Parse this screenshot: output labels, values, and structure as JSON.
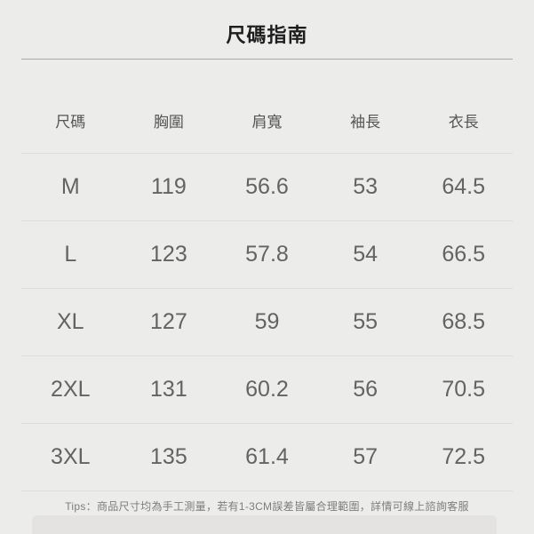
{
  "title": "尺碼指南",
  "table": {
    "headers": [
      "尺碼",
      "胸圍",
      "肩寬",
      "袖長",
      "衣長"
    ],
    "rows": [
      [
        "M",
        "119",
        "56.6",
        "53",
        "64.5"
      ],
      [
        "L",
        "123",
        "57.8",
        "54",
        "66.5"
      ],
      [
        "XL",
        "127",
        "59",
        "55",
        "68.5"
      ],
      [
        "2XL",
        "131",
        "60.2",
        "56",
        "70.5"
      ],
      [
        "3XL",
        "135",
        "61.4",
        "57",
        "72.5"
      ]
    ]
  },
  "tips": "Tips：商品尺寸均為手工測量，若有1-3CM誤差皆屬合理範圍，詳情可線上諮詢客服",
  "colors": {
    "background": "#ececeb",
    "title_text": "#1e1e1e",
    "header_text": "#555555",
    "cell_text": "#636363",
    "tips_text": "#7d7d7d",
    "divider_strong": "#a9a9a9",
    "divider_light": "#dcdcdc",
    "bottom_band": "#e4e3e2"
  }
}
